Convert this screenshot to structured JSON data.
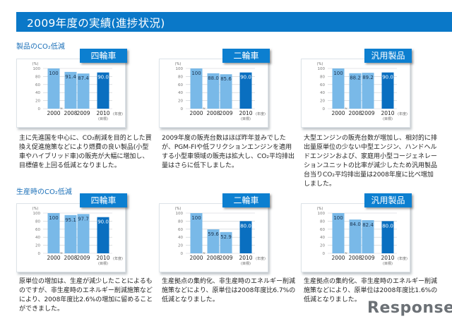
{
  "header": {
    "title": "2009年度の実績(進捗状況)"
  },
  "sections": [
    {
      "title": "製品のCO₂低減"
    },
    {
      "title": "生産時のCO₂低減"
    }
  ],
  "common": {
    "unit": "(%)",
    "year_unit": "(年度)",
    "target_label": "(目標)",
    "break_mark": "≈"
  },
  "watermark": "Response.",
  "colors": {
    "header": "#0a78c8",
    "bar_light": "#79b9e8",
    "bar_target": "#0a6fc0",
    "tag": "#0c7fd0"
  },
  "chart_data": [
    {
      "type": "bar",
      "section": "製品のCO₂低減",
      "title": "四輪車",
      "categories": [
        "2000",
        "2008",
        "2009",
        "2010"
      ],
      "values": [
        100,
        91.4,
        87.4,
        90.0
      ],
      "labels": [
        "100",
        "91.4",
        "87.4",
        "90.0"
      ],
      "target_index": 3,
      "ylabel": "(%)",
      "xlabel": "(年度)",
      "ylim": [
        0,
        100
      ],
      "yticks": [
        0,
        20,
        40,
        60,
        80,
        100
      ],
      "grid": true,
      "description": "主に先進国を中心に、CO₂削減を目的とした買換え促進施策などにより燃費の良い製品(小型車やハイブリッド車)の販売が大幅に増加し、目標値を上回る低減となりました。"
    },
    {
      "type": "bar",
      "section": "製品のCO₂低減",
      "title": "二輪車",
      "categories": [
        "2000",
        "2008",
        "2009",
        "2010"
      ],
      "values": [
        100,
        88.0,
        85.6,
        90.0
      ],
      "labels": [
        "100",
        "88.0",
        "85.6",
        "90.0"
      ],
      "target_index": 3,
      "ylabel": "(%)",
      "xlabel": "(年度)",
      "ylim": [
        0,
        100
      ],
      "yticks": [
        0,
        20,
        40,
        60,
        80,
        100
      ],
      "grid": true,
      "description": "2009年度の販売台数はほぼ昨年並みでしたが、PGM-FIや低フリクションエンジンを適用する小型車領域の販売は拡大し、CO₂平均排出量はさらに低下しました。"
    },
    {
      "type": "bar",
      "section": "製品のCO₂低減",
      "title": "汎用製品",
      "categories": [
        "2000",
        "2008",
        "2009",
        "2010"
      ],
      "values": [
        100,
        88.2,
        89.2,
        90.0
      ],
      "labels": [
        "100",
        "88.2",
        "89.2",
        "90.0"
      ],
      "target_index": 3,
      "ylabel": "(%)",
      "xlabel": "(年度)",
      "ylim": [
        0,
        100
      ],
      "yticks": [
        0,
        20,
        40,
        60,
        80,
        100
      ],
      "grid": true,
      "description": "大型エンジンの販売台数が増加し、相対的に排出量原単位の少ない中型エンジン、ハンドヘルドエンジンおよび、家庭用小型コージェネレーションユニットの比率が減少したため汎用製品台当りCO₂平均排出量は2008年度に比べ増加しました。"
    },
    {
      "type": "bar",
      "section": "生産時のCO₂低減",
      "title": "四輪車",
      "categories": [
        "2000",
        "2008",
        "2009",
        "2010"
      ],
      "values": [
        100,
        95.1,
        97.7,
        90.0
      ],
      "labels": [
        "100",
        "95.1",
        "97.7",
        "90.0"
      ],
      "target_index": 3,
      "ylabel": "(%)",
      "xlabel": "(年度)",
      "ylim": [
        0,
        100
      ],
      "yticks": [
        0,
        20,
        40,
        60,
        80,
        100
      ],
      "grid": true,
      "description": "原単位の増加は、生産が減少したことによるものですが、非生産時のエネルギー削減施策などにより、2008年度比2.6%の増加に留めることができました。"
    },
    {
      "type": "bar",
      "section": "生産時のCO₂低減",
      "title": "二輪車",
      "categories": [
        "2000",
        "2008",
        "2009",
        "2010"
      ],
      "values": [
        100,
        59.6,
        52.9,
        80.0
      ],
      "labels": [
        "100",
        "59.6",
        "52.9",
        "80.0"
      ],
      "target_index": 3,
      "ylabel": "(%)",
      "xlabel": "(年度)",
      "ylim": [
        0,
        100
      ],
      "yticks": [
        0,
        20,
        40,
        60,
        80,
        100
      ],
      "grid": true,
      "description": "生産拠点の集約化、非生産時のエネルギー削減施策などにより、原単位は2008年度比6.7%の低減となりました。"
    },
    {
      "type": "bar",
      "section": "生産時のCO₂低減",
      "title": "汎用製品",
      "categories": [
        "2000",
        "2008",
        "2009",
        "2010"
      ],
      "values": [
        100,
        84.0,
        82.4,
        80.0
      ],
      "labels": [
        "100",
        "84.0",
        "82.4",
        "80.0"
      ],
      "target_index": 3,
      "ylabel": "(%)",
      "xlabel": "(年度)",
      "ylim": [
        0,
        100
      ],
      "yticks": [
        0,
        20,
        40,
        60,
        80,
        100
      ],
      "grid": true,
      "description": "生産拠点の集約化、非生産時のエネルギー削減施策などにより、原単位は2008年度比1.6%の低減となりました。"
    }
  ]
}
